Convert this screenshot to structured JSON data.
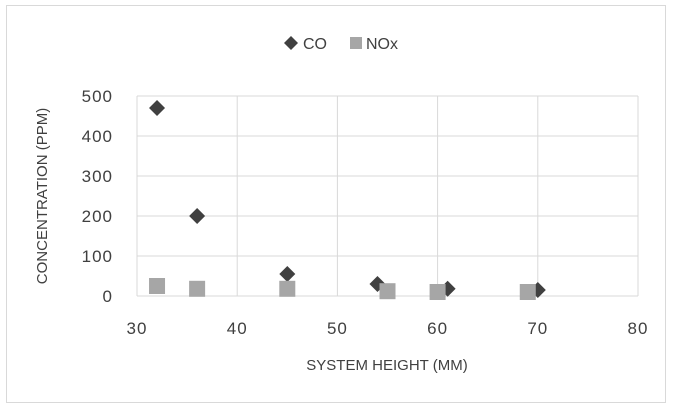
{
  "chart_data": {
    "type": "scatter",
    "title": "",
    "xlabel": "SYSTEM HEIGHT (MM)",
    "ylabel": "CONCENTRATION (PPM)",
    "xlim": [
      30,
      80
    ],
    "ylim": [
      0,
      500
    ],
    "xticks": [
      30,
      40,
      50,
      60,
      70,
      80
    ],
    "yticks": [
      0,
      100,
      200,
      300,
      400,
      500
    ],
    "grid": true,
    "legend_position": "top",
    "series": [
      {
        "name": "CO",
        "marker": "diamond",
        "color": "#404040",
        "x": [
          32,
          36,
          45,
          54,
          61,
          70
        ],
        "y": [
          470,
          200,
          55,
          30,
          18,
          15
        ]
      },
      {
        "name": "NOx",
        "marker": "square",
        "color": "#a6a6a6",
        "x": [
          32,
          36,
          45,
          55,
          60,
          69
        ],
        "y": [
          25,
          18,
          18,
          12,
          10,
          10
        ]
      }
    ]
  }
}
